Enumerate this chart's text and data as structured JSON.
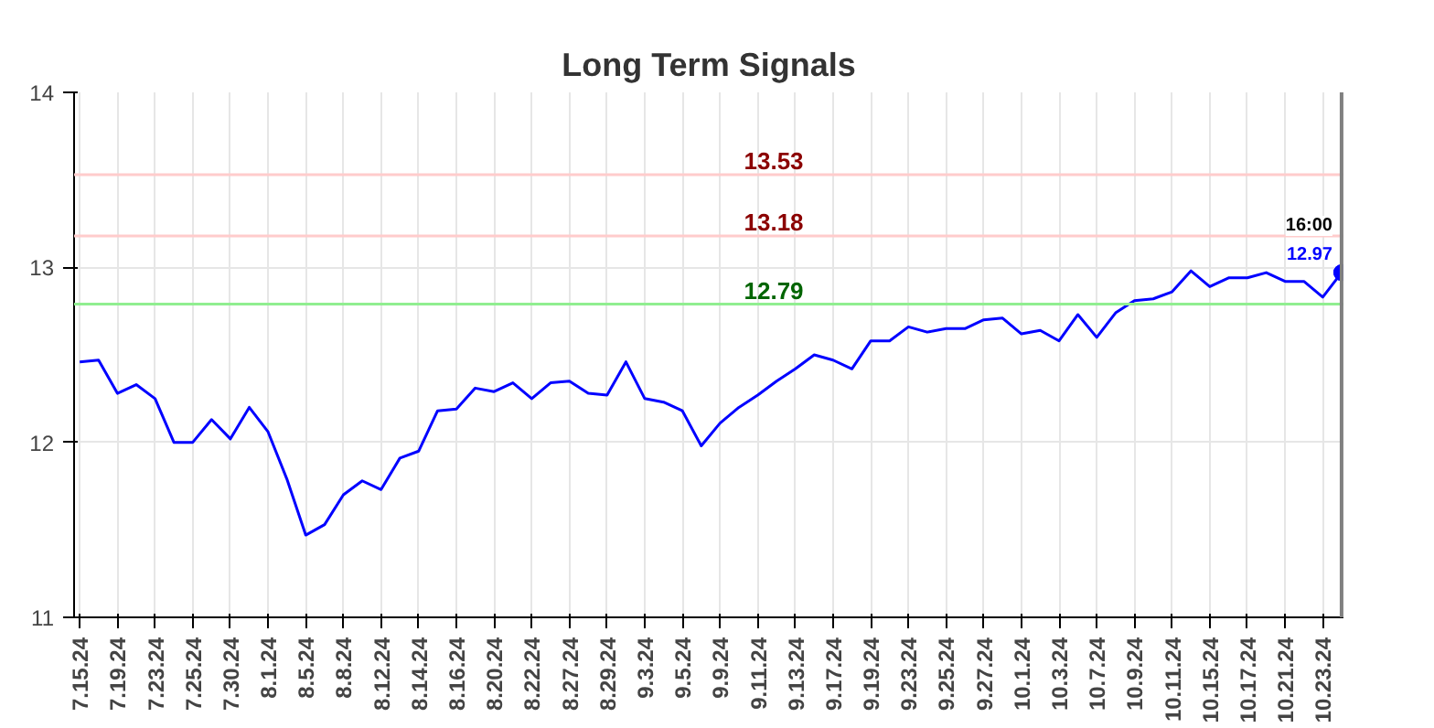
{
  "chart_data": {
    "type": "line",
    "title": "Long Term Signals",
    "categories": [
      "7.15.24",
      null,
      "7.19.24",
      null,
      "7.23.24",
      null,
      "7.25.24",
      null,
      "7.30.24",
      null,
      "8.1.24",
      null,
      "8.5.24",
      null,
      "8.8.24",
      null,
      "8.12.24",
      null,
      "8.14.24",
      null,
      "8.16.24",
      null,
      "8.20.24",
      null,
      "8.22.24",
      null,
      "8.27.24",
      null,
      "8.29.24",
      null,
      "9.3.24",
      null,
      "9.5.24",
      null,
      "9.9.24",
      null,
      "9.11.24",
      null,
      "9.13.24",
      null,
      "9.17.24",
      null,
      "9.19.24",
      null,
      "9.23.24",
      null,
      "9.25.24",
      null,
      "9.27.24",
      null,
      "10.1.24",
      null,
      "10.3.24",
      null,
      "10.7.24",
      null,
      "10.9.24",
      null,
      "10.11.24",
      null,
      "10.15.24",
      null,
      "10.17.24",
      null,
      "10.21.24",
      null,
      "10.23.24",
      null
    ],
    "series": [
      {
        "color": "#0000ff",
        "values": [
          12.46,
          12.47,
          12.28,
          12.33,
          12.25,
          12.0,
          12.0,
          12.13,
          12.02,
          12.2,
          12.06,
          11.79,
          11.47,
          11.53,
          11.7,
          11.78,
          11.73,
          11.91,
          11.95,
          12.18,
          12.19,
          12.31,
          12.29,
          12.34,
          12.25,
          12.34,
          12.35,
          12.28,
          12.27,
          12.46,
          12.25,
          12.23,
          12.18,
          11.98,
          12.11,
          12.2,
          12.27,
          12.35,
          12.42,
          12.5,
          12.47,
          12.42,
          12.58,
          12.58,
          12.66,
          12.63,
          12.65,
          12.65,
          12.7,
          12.71,
          12.62,
          12.64,
          12.58,
          12.73,
          12.6,
          12.74,
          12.81,
          12.82,
          12.86,
          12.98,
          12.89,
          12.94,
          12.94,
          12.97,
          12.92,
          12.92,
          12.83,
          12.97
        ]
      }
    ],
    "ylim": [
      11,
      14
    ],
    "yticks": [
      11,
      12,
      13,
      14
    ],
    "grid": true,
    "ref_lines": [
      {
        "axis": "y",
        "value": 13.53,
        "label": "13.53",
        "color": "#ffcccc"
      },
      {
        "axis": "y",
        "value": 13.18,
        "label": "13.18",
        "color": "#ffcccc"
      },
      {
        "axis": "y",
        "value": 12.79,
        "label": "12.79",
        "color": "#90ee90"
      }
    ],
    "annotations": [
      {
        "text": "16:00",
        "y": 12.97
      },
      {
        "text": "12.97",
        "y": 12.97
      }
    ]
  }
}
